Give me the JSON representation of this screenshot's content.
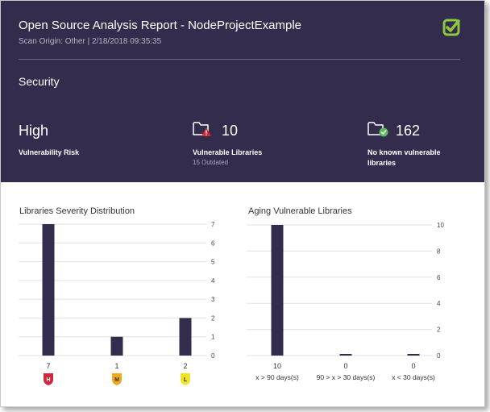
{
  "header": {
    "title": "Open Source Analysis Report - NodeProjectExample",
    "subtitle": "Scan Origin: Other |  2/18/2018 09:35:35",
    "section": "Security",
    "logo_icon": "checkmark-logo-icon",
    "accent_color": "#8dc63f"
  },
  "stats": {
    "risk": {
      "value": "High",
      "label": "Vulnerability Risk"
    },
    "vulnerable": {
      "value": "10",
      "label": "Vulnerable Libraries",
      "sub": "15 Outdated",
      "icon": "folder-warning-icon"
    },
    "safe": {
      "value": "162",
      "label_line1": "No known vulnerable",
      "label_line2": "libraries",
      "icon": "folder-check-icon"
    }
  },
  "chart_data": [
    {
      "type": "bar",
      "title": "Libraries Severity Distribution",
      "categories": [
        "H",
        "M",
        "L"
      ],
      "values": [
        7,
        1,
        2
      ],
      "ylim": [
        0,
        7
      ],
      "ticks": [
        0,
        1,
        2,
        3,
        4,
        5,
        6,
        7
      ],
      "grid": true,
      "bar_color": "#342c4c",
      "badge_colors": [
        "#d0273a",
        "#f0a81c",
        "#f1e426"
      ]
    },
    {
      "type": "bar",
      "title": "Aging Vulnerable Libraries",
      "categories": [
        "x > 90 days(s)",
        "90 > x > 30 days(s)",
        "x < 30 days(s)"
      ],
      "values": [
        10,
        0,
        0
      ],
      "ylim": [
        0,
        10
      ],
      "ticks": [
        0,
        2,
        4,
        6,
        8,
        10
      ],
      "grid": true,
      "bar_color": "#342c4c"
    }
  ]
}
